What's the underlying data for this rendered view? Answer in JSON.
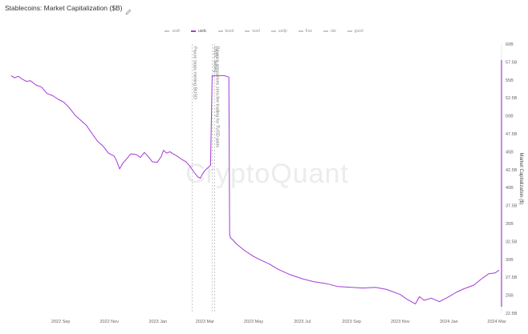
{
  "header": {
    "title": "Stablecoins: Market Capitalization ($B)",
    "edit_icon": "pencil-icon"
  },
  "legend": [
    {
      "label": "usdt",
      "active": false
    },
    {
      "label": "usdc",
      "active": true
    },
    {
      "label": "busd",
      "active": false
    },
    {
      "label": "tusd",
      "active": false
    },
    {
      "label": "usdp",
      "active": false
    },
    {
      "label": "frax",
      "active": false
    },
    {
      "label": "dai",
      "active": false
    },
    {
      "label": "gusd",
      "active": false
    }
  ],
  "watermark": "CryptoQuant",
  "colors": {
    "series": "#a23bd6",
    "grid": "#eeeeee",
    "annotation": "#aaaaaa"
  },
  "chart_data": {
    "type": "line",
    "ylabel": "Market Capitalization ($)",
    "ylim": [
      22.5,
      60
    ],
    "yticks": [
      "60B",
      "57.5B",
      "55B",
      "52.5B",
      "50B",
      "47.5B",
      "45B",
      "42.5B",
      "40B",
      "37.5B",
      "35B",
      "32.5B",
      "30B",
      "27.5B",
      "25B",
      "22.5B"
    ],
    "xticks": [
      "2022 Sep",
      "2022 Nov",
      "2023 Jan",
      "2023 Mar",
      "2023 May",
      "2023 Jul",
      "2023 Sep",
      "2023 Nov",
      "2024 Jan",
      "2024 Mar"
    ],
    "x_range": [
      "2022-07-01",
      "2024-03-04"
    ],
    "annotations": [
      {
        "date": "2023-02-13",
        "text": "Paxos stops minting BUSD"
      },
      {
        "date": "2023-03-10",
        "text": "USDC depeg"
      },
      {
        "date": "2023-03-13",
        "text": "Binance announces zero-fee trading for TUSD pairs"
      }
    ],
    "series": [
      {
        "name": "usdc",
        "x": [
          "2022-07-01",
          "2022-07-05",
          "2022-07-10",
          "2022-07-15",
          "2022-07-20",
          "2022-07-25",
          "2022-08-01",
          "2022-08-08",
          "2022-08-15",
          "2022-08-22",
          "2022-08-29",
          "2022-09-05",
          "2022-09-12",
          "2022-09-19",
          "2022-09-26",
          "2022-10-03",
          "2022-10-10",
          "2022-10-17",
          "2022-10-24",
          "2022-10-31",
          "2022-11-07",
          "2022-11-10",
          "2022-11-14",
          "2022-11-18",
          "2022-11-22",
          "2022-11-28",
          "2022-12-05",
          "2022-12-10",
          "2022-12-15",
          "2022-12-20",
          "2022-12-25",
          "2022-12-31",
          "2023-01-05",
          "2023-01-08",
          "2023-01-12",
          "2023-01-16",
          "2023-01-20",
          "2023-01-25",
          "2023-01-30",
          "2023-02-05",
          "2023-02-10",
          "2023-02-15",
          "2023-02-20",
          "2023-02-23",
          "2023-02-26",
          "2023-03-01",
          "2023-03-08",
          "2023-03-10",
          "2023-03-11",
          "2023-03-12",
          "2023-03-13",
          "2023-03-15",
          "2023-03-20",
          "2023-03-25",
          "2023-03-31",
          "2023-04-01",
          "2023-04-02",
          "2023-04-05",
          "2023-04-10",
          "2023-04-20",
          "2023-05-01",
          "2023-05-10",
          "2023-05-20",
          "2023-06-01",
          "2023-06-15",
          "2023-07-01",
          "2023-07-15",
          "2023-08-01",
          "2023-08-15",
          "2023-09-01",
          "2023-09-15",
          "2023-10-01",
          "2023-10-15",
          "2023-11-01",
          "2023-11-10",
          "2023-11-20",
          "2023-11-25",
          "2023-12-01",
          "2023-12-10",
          "2023-12-20",
          "2024-01-01",
          "2024-01-10",
          "2024-01-20",
          "2024-02-01",
          "2024-02-10",
          "2024-02-20",
          "2024-02-28",
          "2024-03-04"
        ],
        "y": [
          55.6,
          55.3,
          55.5,
          55.1,
          54.8,
          54.9,
          54.3,
          54.0,
          53.1,
          52.8,
          52.3,
          51.9,
          51.1,
          50.1,
          49.4,
          48.7,
          47.6,
          46.5,
          45.8,
          44.8,
          44.4,
          43.8,
          42.6,
          43.4,
          43.9,
          44.7,
          44.6,
          44.2,
          44.9,
          44.3,
          43.6,
          43.5,
          44.3,
          45.2,
          44.8,
          45.0,
          44.7,
          44.4,
          44.0,
          43.6,
          43.0,
          42.2,
          41.5,
          41.3,
          41.9,
          42.4,
          43.1,
          55.6,
          55.6,
          55.5,
          55.6,
          55.6,
          55.6,
          55.6,
          55.4,
          33.5,
          33.0,
          32.7,
          32.1,
          31.2,
          30.4,
          29.9,
          29.4,
          28.6,
          27.9,
          27.3,
          26.9,
          26.6,
          26.2,
          26.1,
          26.0,
          26.1,
          25.8,
          25.1,
          24.4,
          23.8,
          24.8,
          24.3,
          24.6,
          24.1,
          24.8,
          25.4,
          25.9,
          26.4,
          27.2,
          28.0,
          28.1,
          28.5
        ]
      }
    ]
  }
}
